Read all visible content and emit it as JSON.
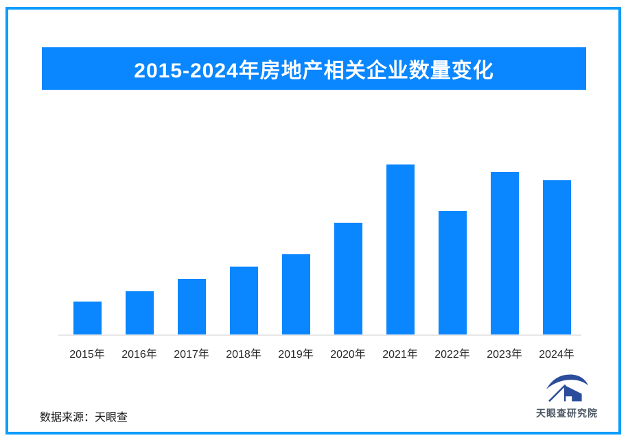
{
  "page": {
    "background_color": "#ffffff",
    "frame_color": "#0c9dfc"
  },
  "header": {
    "title": "2015-2024年房地产相关企业数量变化",
    "banner_color": "#0a86ff",
    "title_color": "#ffffff"
  },
  "chart_data": {
    "type": "bar",
    "title": "2015-2024年房地产相关企业数量变化",
    "categories": [
      "2015年",
      "2016年",
      "2017年",
      "2018年",
      "2019年",
      "2020年",
      "2021年",
      "2022年",
      "2023年",
      "2024年"
    ],
    "values": [
      19.4,
      25.4,
      32.7,
      39.9,
      47.2,
      65.7,
      100,
      72.6,
      95.6,
      90.7
    ],
    "ylim": [
      0,
      100
    ],
    "xlabel": "",
    "ylabel": "",
    "bar_color": "#0a86ff",
    "grid": false,
    "legend": "none",
    "value_labels_shown": false,
    "note": "No numeric y-axis or data labels are visible in the image; values are relative bar heights with the tallest bar (2021年) normalized to 100."
  },
  "footer": {
    "source_label": "数据来源：天眼查",
    "brand_name": "天眼查研究院",
    "logo_color": "#2b4d9b"
  }
}
